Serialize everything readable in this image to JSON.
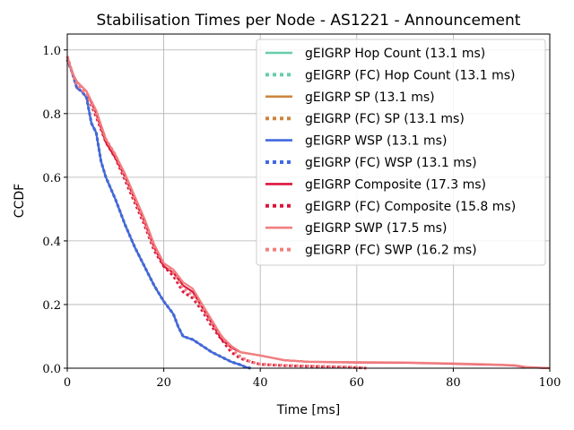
{
  "chart_data": {
    "type": "line",
    "title": "Stabilisation Times per Node - AS1221 - Announcement",
    "xlabel": "Time [ms]",
    "ylabel": "CCDF",
    "xlim": [
      0,
      100
    ],
    "ylim": [
      0,
      1.05
    ],
    "xticks": [
      0,
      20,
      40,
      60,
      80,
      100
    ],
    "yticks": [
      0.0,
      0.2,
      0.4,
      0.6,
      0.8,
      1.0
    ],
    "xtick_labels": [
      "0",
      "20",
      "40",
      "60",
      "80",
      "100"
    ],
    "ytick_labels": [
      "0.0",
      "0.2",
      "0.4",
      "0.6",
      "0.8",
      "1.0"
    ],
    "grid": true,
    "legend_position": "top-right",
    "series": [
      {
        "name": "gEIGRP Hop Count (13.1 ms)",
        "color": "#66cdaa",
        "style": "solid",
        "x": [
          0,
          1,
          2,
          3,
          4,
          5,
          6,
          7,
          8,
          10,
          12,
          14,
          16,
          18,
          20,
          22,
          23,
          24,
          25,
          26,
          28,
          30,
          32,
          34,
          36,
          37,
          38
        ],
        "y": [
          0.97,
          0.93,
          0.88,
          0.87,
          0.85,
          0.77,
          0.74,
          0.65,
          0.6,
          0.53,
          0.45,
          0.38,
          0.32,
          0.26,
          0.21,
          0.17,
          0.13,
          0.1,
          0.095,
          0.09,
          0.07,
          0.05,
          0.035,
          0.02,
          0.01,
          0.003,
          0
        ]
      },
      {
        "name": "gEIGRP (FC) Hop Count (13.1 ms)",
        "color": "#66cdaa",
        "style": "dotted",
        "x": [
          0,
          1,
          2,
          3,
          4,
          5,
          6,
          7,
          8,
          10,
          12,
          14,
          16,
          18,
          20,
          22,
          23,
          24,
          25,
          26,
          28,
          30,
          32,
          34,
          36,
          37,
          38
        ],
        "y": [
          0.97,
          0.93,
          0.88,
          0.87,
          0.85,
          0.77,
          0.74,
          0.65,
          0.6,
          0.53,
          0.45,
          0.38,
          0.32,
          0.26,
          0.21,
          0.17,
          0.13,
          0.1,
          0.095,
          0.09,
          0.07,
          0.05,
          0.035,
          0.02,
          0.01,
          0.003,
          0
        ]
      },
      {
        "name": "gEIGRP SP (13.1 ms)",
        "color": "#cd853f",
        "style": "solid",
        "x": [
          0,
          1,
          2,
          3,
          4,
          5,
          6,
          7,
          8,
          10,
          12,
          14,
          16,
          18,
          20,
          22,
          23,
          24,
          25,
          26,
          28,
          30,
          32,
          34,
          36,
          37,
          38
        ],
        "y": [
          0.97,
          0.93,
          0.88,
          0.87,
          0.85,
          0.77,
          0.74,
          0.65,
          0.6,
          0.53,
          0.45,
          0.38,
          0.32,
          0.26,
          0.21,
          0.17,
          0.13,
          0.1,
          0.095,
          0.09,
          0.07,
          0.05,
          0.035,
          0.02,
          0.01,
          0.003,
          0
        ]
      },
      {
        "name": "gEIGRP (FC) SP (13.1 ms)",
        "color": "#cd853f",
        "style": "dotted",
        "x": [
          0,
          1,
          2,
          3,
          4,
          5,
          6,
          7,
          8,
          10,
          12,
          14,
          16,
          18,
          20,
          22,
          23,
          24,
          25,
          26,
          28,
          30,
          32,
          34,
          36,
          37,
          38
        ],
        "y": [
          0.97,
          0.93,
          0.88,
          0.87,
          0.85,
          0.77,
          0.74,
          0.65,
          0.6,
          0.53,
          0.45,
          0.38,
          0.32,
          0.26,
          0.21,
          0.17,
          0.13,
          0.1,
          0.095,
          0.09,
          0.07,
          0.05,
          0.035,
          0.02,
          0.01,
          0.003,
          0
        ]
      },
      {
        "name": "gEIGRP WSP (13.1 ms)",
        "color": "#4169e1",
        "style": "solid",
        "x": [
          0,
          1,
          2,
          3,
          4,
          5,
          6,
          7,
          8,
          10,
          12,
          14,
          16,
          18,
          20,
          22,
          23,
          24,
          25,
          26,
          28,
          30,
          32,
          34,
          36,
          37,
          38
        ],
        "y": [
          0.97,
          0.93,
          0.88,
          0.87,
          0.85,
          0.77,
          0.74,
          0.65,
          0.6,
          0.53,
          0.45,
          0.38,
          0.32,
          0.26,
          0.21,
          0.17,
          0.13,
          0.1,
          0.095,
          0.09,
          0.07,
          0.05,
          0.035,
          0.02,
          0.01,
          0.003,
          0
        ]
      },
      {
        "name": "gEIGRP (FC) WSP (13.1 ms)",
        "color": "#4169e1",
        "style": "dotted",
        "x": [
          0,
          1,
          2,
          3,
          4,
          5,
          6,
          7,
          8,
          10,
          12,
          14,
          16,
          18,
          20,
          22,
          23,
          24,
          25,
          26,
          28,
          30,
          32,
          34,
          36,
          37,
          38
        ],
        "y": [
          0.97,
          0.93,
          0.88,
          0.87,
          0.85,
          0.77,
          0.74,
          0.65,
          0.6,
          0.53,
          0.45,
          0.38,
          0.32,
          0.26,
          0.21,
          0.17,
          0.13,
          0.1,
          0.095,
          0.09,
          0.07,
          0.05,
          0.035,
          0.02,
          0.01,
          0.003,
          0
        ]
      },
      {
        "name": "gEIGRP Composite (17.3 ms)",
        "color": "#dc143c",
        "style": "solid",
        "x": [
          0,
          1,
          2,
          4,
          6,
          8,
          10,
          12,
          14,
          16,
          18,
          20,
          22,
          24,
          26,
          28,
          30,
          32,
          34,
          36,
          40,
          45,
          50,
          60,
          70,
          80,
          85,
          90,
          93,
          95,
          100
        ],
        "y": [
          0.98,
          0.93,
          0.9,
          0.87,
          0.8,
          0.71,
          0.66,
          0.6,
          0.53,
          0.46,
          0.38,
          0.32,
          0.3,
          0.26,
          0.24,
          0.19,
          0.14,
          0.09,
          0.065,
          0.05,
          0.04,
          0.025,
          0.02,
          0.018,
          0.017,
          0.014,
          0.012,
          0.01,
          0.008,
          0.003,
          0
        ]
      },
      {
        "name": "gEIGRP (FC) Composite (15.8 ms)",
        "color": "#dc143c",
        "style": "dotted",
        "x": [
          0,
          1,
          2,
          4,
          6,
          8,
          10,
          12,
          14,
          16,
          18,
          20,
          22,
          24,
          26,
          28,
          30,
          32,
          34,
          36,
          38,
          40,
          45,
          50,
          55,
          60,
          62
        ],
        "y": [
          0.98,
          0.93,
          0.89,
          0.86,
          0.79,
          0.71,
          0.66,
          0.59,
          0.52,
          0.45,
          0.37,
          0.32,
          0.29,
          0.24,
          0.22,
          0.18,
          0.13,
          0.09,
          0.05,
          0.03,
          0.02,
          0.012,
          0.008,
          0.006,
          0.004,
          0.002,
          0
        ]
      },
      {
        "name": "gEIGRP SWP (17.5 ms)",
        "color": "#f08080",
        "style": "solid",
        "x": [
          0,
          1,
          2,
          4,
          6,
          8,
          10,
          12,
          14,
          16,
          18,
          20,
          22,
          24,
          26,
          28,
          30,
          32,
          34,
          36,
          40,
          45,
          50,
          60,
          70,
          80,
          85,
          90,
          93,
          95,
          100
        ],
        "y": [
          0.98,
          0.93,
          0.9,
          0.87,
          0.81,
          0.72,
          0.67,
          0.61,
          0.54,
          0.47,
          0.39,
          0.33,
          0.31,
          0.27,
          0.25,
          0.2,
          0.15,
          0.1,
          0.07,
          0.05,
          0.04,
          0.025,
          0.02,
          0.019,
          0.018,
          0.015,
          0.013,
          0.011,
          0.009,
          0.004,
          0
        ]
      },
      {
        "name": "gEIGRP (FC) SWP (16.2 ms)",
        "color": "#f08080",
        "style": "dotted",
        "x": [
          0,
          1,
          2,
          4,
          6,
          8,
          10,
          12,
          14,
          16,
          18,
          20,
          22,
          24,
          26,
          28,
          30,
          32,
          34,
          36,
          38,
          40,
          45,
          50,
          55,
          60,
          62
        ],
        "y": [
          0.98,
          0.93,
          0.89,
          0.86,
          0.8,
          0.72,
          0.67,
          0.6,
          0.53,
          0.46,
          0.38,
          0.33,
          0.3,
          0.25,
          0.23,
          0.19,
          0.14,
          0.1,
          0.06,
          0.035,
          0.02,
          0.013,
          0.009,
          0.007,
          0.005,
          0.003,
          0
        ]
      }
    ]
  }
}
